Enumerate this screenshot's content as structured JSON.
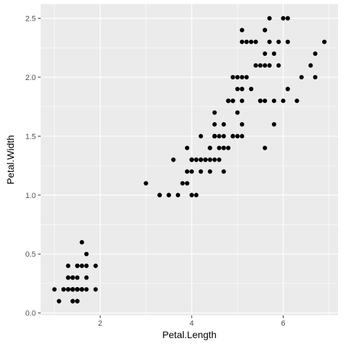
{
  "chart_data": {
    "type": "scatter",
    "title": "",
    "xlabel": "Petal.Length",
    "ylabel": "Petal.Width",
    "xlim": [
      0.7,
      7.2
    ],
    "ylim": [
      -0.02,
      2.62
    ],
    "x_ticks": [
      {
        "value": 2,
        "label": "2"
      },
      {
        "value": 4,
        "label": "4"
      },
      {
        "value": 6,
        "label": "6"
      }
    ],
    "y_ticks": [
      {
        "value": 0.0,
        "label": "0.0"
      },
      {
        "value": 0.5,
        "label": "0.5"
      },
      {
        "value": 1.0,
        "label": "1.0"
      },
      {
        "value": 1.5,
        "label": "1.5"
      },
      {
        "value": 2.0,
        "label": "2.0"
      },
      {
        "value": 2.5,
        "label": "2.5"
      }
    ],
    "x_minor_ticks": [
      1,
      3,
      5,
      7
    ],
    "y_minor_ticks": [
      0.25,
      0.75,
      1.25,
      1.75,
      2.25
    ],
    "grid": true,
    "colors": {
      "panel": "#ebebeb",
      "grid": "#ffffff",
      "point": "#000000"
    },
    "points": [
      [
        1.4,
        0.2
      ],
      [
        1.4,
        0.2
      ],
      [
        1.3,
        0.2
      ],
      [
        1.5,
        0.2
      ],
      [
        1.4,
        0.2
      ],
      [
        1.7,
        0.4
      ],
      [
        1.4,
        0.3
      ],
      [
        1.5,
        0.2
      ],
      [
        1.4,
        0.2
      ],
      [
        1.5,
        0.1
      ],
      [
        1.5,
        0.2
      ],
      [
        1.6,
        0.2
      ],
      [
        1.4,
        0.1
      ],
      [
        1.1,
        0.1
      ],
      [
        1.2,
        0.2
      ],
      [
        1.5,
        0.4
      ],
      [
        1.3,
        0.4
      ],
      [
        1.4,
        0.3
      ],
      [
        1.7,
        0.3
      ],
      [
        1.5,
        0.3
      ],
      [
        1.7,
        0.2
      ],
      [
        1.5,
        0.4
      ],
      [
        1.0,
        0.2
      ],
      [
        1.7,
        0.5
      ],
      [
        1.9,
        0.2
      ],
      [
        1.6,
        0.2
      ],
      [
        1.6,
        0.4
      ],
      [
        1.5,
        0.2
      ],
      [
        1.4,
        0.2
      ],
      [
        1.6,
        0.2
      ],
      [
        1.6,
        0.2
      ],
      [
        1.5,
        0.4
      ],
      [
        1.5,
        0.1
      ],
      [
        1.4,
        0.2
      ],
      [
        1.5,
        0.2
      ],
      [
        1.2,
        0.2
      ],
      [
        1.3,
        0.2
      ],
      [
        1.4,
        0.1
      ],
      [
        1.3,
        0.2
      ],
      [
        1.5,
        0.2
      ],
      [
        1.3,
        0.3
      ],
      [
        1.3,
        0.3
      ],
      [
        1.3,
        0.2
      ],
      [
        1.6,
        0.6
      ],
      [
        1.9,
        0.4
      ],
      [
        1.4,
        0.3
      ],
      [
        1.6,
        0.2
      ],
      [
        1.4,
        0.2
      ],
      [
        1.5,
        0.2
      ],
      [
        1.4,
        0.2
      ],
      [
        4.7,
        1.4
      ],
      [
        4.5,
        1.5
      ],
      [
        4.9,
        1.5
      ],
      [
        4.0,
        1.3
      ],
      [
        4.6,
        1.5
      ],
      [
        4.5,
        1.3
      ],
      [
        4.7,
        1.6
      ],
      [
        3.3,
        1.0
      ],
      [
        4.6,
        1.3
      ],
      [
        3.9,
        1.4
      ],
      [
        3.5,
        1.0
      ],
      [
        4.2,
        1.5
      ],
      [
        4.0,
        1.0
      ],
      [
        4.7,
        1.4
      ],
      [
        3.6,
        1.3
      ],
      [
        4.4,
        1.4
      ],
      [
        4.5,
        1.5
      ],
      [
        4.1,
        1.0
      ],
      [
        4.5,
        1.5
      ],
      [
        3.9,
        1.1
      ],
      [
        4.8,
        1.8
      ],
      [
        4.0,
        1.3
      ],
      [
        4.9,
        1.5
      ],
      [
        4.7,
        1.2
      ],
      [
        4.3,
        1.3
      ],
      [
        4.4,
        1.4
      ],
      [
        4.8,
        1.4
      ],
      [
        5.0,
        1.7
      ],
      [
        4.5,
        1.5
      ],
      [
        3.5,
        1.0
      ],
      [
        3.8,
        1.1
      ],
      [
        3.7,
        1.0
      ],
      [
        3.9,
        1.2
      ],
      [
        5.1,
        1.6
      ],
      [
        4.5,
        1.5
      ],
      [
        4.5,
        1.6
      ],
      [
        4.7,
        1.5
      ],
      [
        4.4,
        1.3
      ],
      [
        4.1,
        1.3
      ],
      [
        4.0,
        1.3
      ],
      [
        4.4,
        1.2
      ],
      [
        4.6,
        1.4
      ],
      [
        4.0,
        1.2
      ],
      [
        3.3,
        1.0
      ],
      [
        4.2,
        1.3
      ],
      [
        4.2,
        1.2
      ],
      [
        4.2,
        1.3
      ],
      [
        4.3,
        1.3
      ],
      [
        3.0,
        1.1
      ],
      [
        4.1,
        1.3
      ],
      [
        6.0,
        2.5
      ],
      [
        5.1,
        1.9
      ],
      [
        5.9,
        2.1
      ],
      [
        5.6,
        1.8
      ],
      [
        5.8,
        2.2
      ],
      [
        6.6,
        2.1
      ],
      [
        4.5,
        1.7
      ],
      [
        6.3,
        1.8
      ],
      [
        5.8,
        1.8
      ],
      [
        6.1,
        2.5
      ],
      [
        5.1,
        2.0
      ],
      [
        5.3,
        1.9
      ],
      [
        5.5,
        2.1
      ],
      [
        5.0,
        2.0
      ],
      [
        5.1,
        2.4
      ],
      [
        5.3,
        2.3
      ],
      [
        5.5,
        1.8
      ],
      [
        6.7,
        2.2
      ],
      [
        6.9,
        2.3
      ],
      [
        5.0,
        1.5
      ],
      [
        5.7,
        2.3
      ],
      [
        4.9,
        2.0
      ],
      [
        6.7,
        2.0
      ],
      [
        4.9,
        1.8
      ],
      [
        5.7,
        2.1
      ],
      [
        6.0,
        1.8
      ],
      [
        4.8,
        1.8
      ],
      [
        4.9,
        1.8
      ],
      [
        5.6,
        2.1
      ],
      [
        5.8,
        1.6
      ],
      [
        6.1,
        1.9
      ],
      [
        6.4,
        2.0
      ],
      [
        5.6,
        2.2
      ],
      [
        5.1,
        1.5
      ],
      [
        5.6,
        1.4
      ],
      [
        6.1,
        2.3
      ],
      [
        5.6,
        2.4
      ],
      [
        5.5,
        1.8
      ],
      [
        4.8,
        1.8
      ],
      [
        5.4,
        2.1
      ],
      [
        5.6,
        2.4
      ],
      [
        5.1,
        2.3
      ],
      [
        5.1,
        1.9
      ],
      [
        5.9,
        2.3
      ],
      [
        5.7,
        2.5
      ],
      [
        5.2,
        2.3
      ],
      [
        5.0,
        1.9
      ],
      [
        5.2,
        2.0
      ],
      [
        5.4,
        2.3
      ],
      [
        5.1,
        1.8
      ]
    ]
  }
}
